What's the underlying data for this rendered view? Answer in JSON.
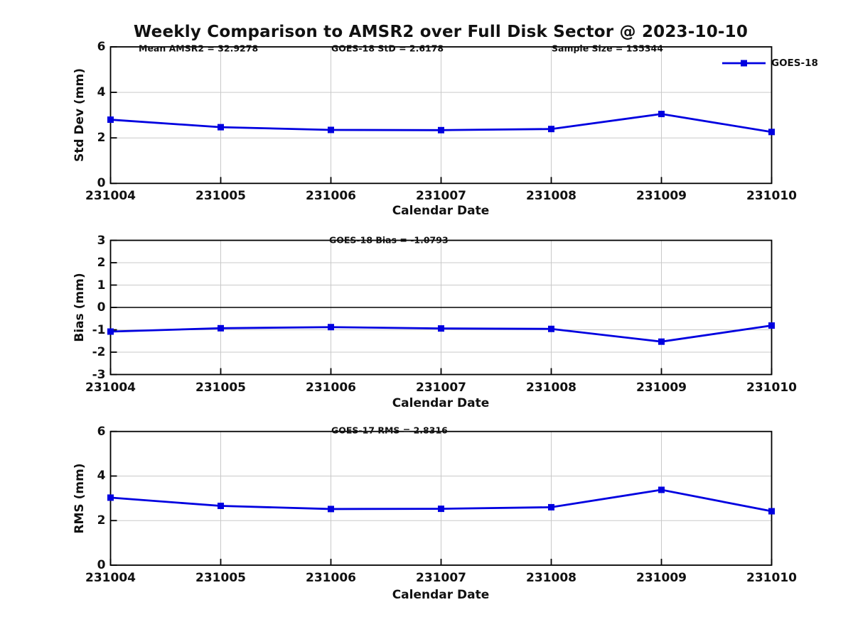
{
  "title": "Weekly Comparison to AMSR2 over Full Disk Sector @ 2023-10-10",
  "legend": {
    "label": "GOES-18"
  },
  "colors": {
    "line": "#0000e0",
    "marker": "#0000e0",
    "grid": "#c9c9c9",
    "axis": "#000000",
    "zero_line": "#000000"
  },
  "chart_data": [
    {
      "type": "line",
      "name": "std-dev-subplot",
      "ylabel": "Std Dev (mm)",
      "xlabel": "Calendar Date",
      "ylim": [
        0,
        6
      ],
      "yticks": [
        0,
        2,
        4,
        6
      ],
      "grid": true,
      "categories": [
        "231004",
        "231005",
        "231006",
        "231007",
        "231008",
        "231009",
        "231010"
      ],
      "annotations": [
        "Mean AMSR2 = 32.9278",
        "GOES-18 StD = 2.6178",
        "Sample Size = 135344"
      ],
      "legend_position": "northeast-outside-text",
      "series": [
        {
          "name": "GOES-18",
          "values": [
            2.8,
            2.47,
            2.35,
            2.34,
            2.39,
            3.05,
            2.26
          ]
        }
      ]
    },
    {
      "type": "line",
      "name": "bias-subplot",
      "ylabel": "Bias (mm)",
      "xlabel": "Calendar Date",
      "ylim": [
        -3,
        3
      ],
      "yticks": [
        -3,
        -2,
        -1,
        0,
        1,
        2,
        3
      ],
      "grid": true,
      "zero_line": true,
      "categories": [
        "231004",
        "231005",
        "231006",
        "231007",
        "231008",
        "231009",
        "231010"
      ],
      "annotations": [
        "GOES-18 Bias  = -1.0793"
      ],
      "series": [
        {
          "name": "GOES-18",
          "values": [
            -1.08,
            -0.93,
            -0.88,
            -0.94,
            -0.96,
            -1.53,
            -0.81
          ]
        }
      ]
    },
    {
      "type": "line",
      "name": "rms-subplot",
      "ylabel": "RMS (mm)",
      "xlabel": "Calendar Date",
      "ylim": [
        0,
        6
      ],
      "yticks": [
        0,
        2,
        4,
        6
      ],
      "grid": true,
      "categories": [
        "231004",
        "231005",
        "231006",
        "231007",
        "231008",
        "231009",
        "231010"
      ],
      "annotations": [
        "GOES-17 RMS = 2.8316"
      ],
      "series": [
        {
          "name": "GOES-18",
          "values": [
            3.03,
            2.66,
            2.52,
            2.53,
            2.6,
            3.38,
            2.42
          ]
        }
      ]
    }
  ]
}
